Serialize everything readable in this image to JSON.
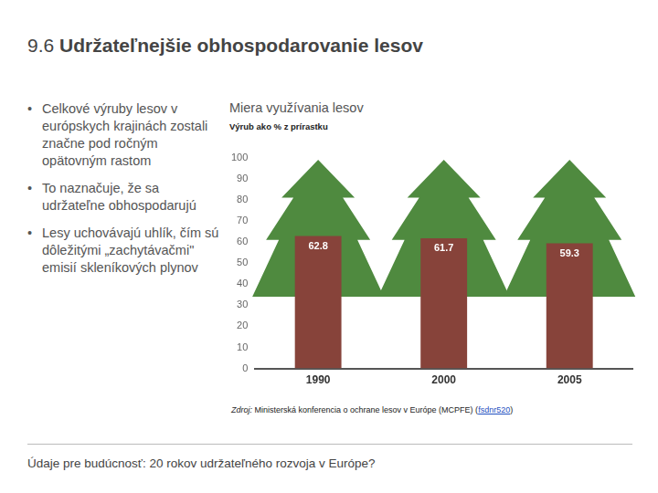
{
  "header": {
    "number": "9.6",
    "title": "Udržateľnejšie obhospodarovanie lesov"
  },
  "bullets": [
    "Celkové výruby lesov v európskych krajinách zostali značne pod ročným opätovným rastom",
    "To naznačuje, že sa udržateľne obhospodarujú",
    "Lesy uchovávajú uhlík, čím sú dôležitými „zachytávačmi\" emisií skleníkových plynov"
  ],
  "source": {
    "prefix": "Zdroj:",
    "text": "Ministerská konferencia o ochrane lesov v Európe (MCPFE) (",
    "link": "fsdnr520",
    "text_end": ")"
  },
  "footer": "Údaje pre budúcnosť: 20 rokov udržateľného rozvoja v Európe?",
  "chart_data": {
    "type": "bar",
    "title": "Miera využívania lesov",
    "subtitle": "Výrub ako % z prírastku",
    "categories": [
      "1990",
      "2000",
      "2005"
    ],
    "values": [
      62.8,
      61.7,
      59.3
    ],
    "color": "#87433a",
    "ylim": [
      0,
      100
    ],
    "yticks": [
      0,
      10,
      20,
      30,
      40,
      50,
      60,
      70,
      80,
      90,
      100
    ],
    "grid": false,
    "data_labels": true
  }
}
